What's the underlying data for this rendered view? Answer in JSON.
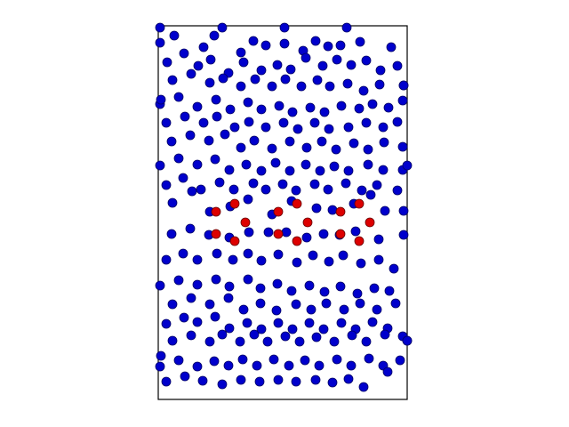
{
  "chart_data": {
    "type": "scatter",
    "title": "",
    "xlabel": "",
    "ylabel": "",
    "grid": false,
    "axes_ticks": false,
    "xlim": [
      0,
      280
    ],
    "ylim": [
      0,
      420
    ],
    "series": [
      {
        "color": "#0000cc",
        "edge_color": "#000066",
        "points": [
          [
            2,
            418
          ],
          [
            72,
            418
          ],
          [
            142,
            418
          ],
          [
            212,
            418
          ],
          [
            2,
            401
          ],
          [
            18,
            409
          ],
          [
            51,
            396
          ],
          [
            63,
            409
          ],
          [
            93,
            390
          ],
          [
            107,
            403
          ],
          [
            121,
            398
          ],
          [
            142,
            400
          ],
          [
            163,
            392
          ],
          [
            177,
            403
          ],
          [
            191,
            397
          ],
          [
            205,
            398
          ],
          [
            227,
            402
          ],
          [
            262,
            396
          ],
          [
            10,
            379
          ],
          [
            29,
            389
          ],
          [
            45,
            375
          ],
          [
            59,
            382
          ],
          [
            79,
            367
          ],
          [
            96,
            379
          ],
          [
            116,
            370
          ],
          [
            134,
            376
          ],
          [
            149,
            371
          ],
          [
            166,
            384
          ],
          [
            185,
            375
          ],
          [
            201,
            382
          ],
          [
            217,
            376
          ],
          [
            234,
            381
          ],
          [
            250,
            370
          ],
          [
            269,
            375
          ],
          [
            16,
            359
          ],
          [
            37,
            366
          ],
          [
            58,
            356
          ],
          [
            73,
            361
          ],
          [
            93,
            352
          ],
          [
            109,
            360
          ],
          [
            128,
            352
          ],
          [
            143,
            360
          ],
          [
            161,
            352
          ],
          [
            179,
            359
          ],
          [
            193,
            352
          ],
          [
            213,
            355
          ],
          [
            231,
            347
          ],
          [
            249,
            354
          ],
          [
            276,
            353
          ],
          [
            2,
            332
          ],
          [
            23,
            340
          ],
          [
            44,
            329
          ],
          [
            65,
            337
          ],
          [
            81,
            326
          ],
          [
            101,
            334
          ],
          [
            116,
            326
          ],
          [
            136,
            330
          ],
          [
            151,
            323
          ],
          [
            171,
            328
          ],
          [
            187,
            323
          ],
          [
            206,
            330
          ],
          [
            226,
            327
          ],
          [
            241,
            332
          ],
          [
            259,
            328
          ],
          [
            275,
            336
          ],
          [
            9,
            311
          ],
          [
            30,
            318
          ],
          [
            51,
            311
          ],
          [
            66,
            318
          ],
          [
            86,
            306
          ],
          [
            102,
            312
          ],
          [
            121,
            306
          ],
          [
            141,
            311
          ],
          [
            157,
            304
          ],
          [
            176,
            311
          ],
          [
            192,
            304
          ],
          [
            214,
            306
          ],
          [
            234,
            311
          ],
          [
            253,
            306
          ],
          [
            269,
            312
          ],
          [
            15,
            290
          ],
          [
            36,
            297
          ],
          [
            57,
            291
          ],
          [
            75,
            298
          ],
          [
            93,
            283
          ],
          [
            108,
            291
          ],
          [
            128,
            282
          ],
          [
            148,
            290
          ],
          [
            167,
            283
          ],
          [
            184,
            290
          ],
          [
            200,
            281
          ],
          [
            220,
            288
          ],
          [
            236,
            281
          ],
          [
            254,
            289
          ],
          [
            275,
            284
          ],
          [
            2,
            263
          ],
          [
            23,
            271
          ],
          [
            44,
            264
          ],
          [
            64,
            270
          ],
          [
            80,
            258
          ],
          [
            99,
            264
          ],
          [
            116,
            257
          ],
          [
            132,
            266
          ],
          [
            148,
            257
          ],
          [
            166,
            264
          ],
          [
            182,
            257
          ],
          [
            198,
            262
          ],
          [
            214,
            257
          ],
          [
            236,
            264
          ],
          [
            253,
            258
          ],
          [
            275,
            258
          ],
          [
            9,
            241
          ],
          [
            28,
            249
          ],
          [
            48,
            236
          ],
          [
            69,
            244
          ],
          [
            85,
            236
          ],
          [
            107,
            243
          ],
          [
            121,
            236
          ],
          [
            140,
            242
          ],
          [
            155,
            235
          ],
          [
            176,
            242
          ],
          [
            191,
            236
          ],
          [
            211,
            243
          ],
          [
            229,
            235
          ],
          [
            246,
            241
          ],
          [
            269,
            235
          ],
          [
            16,
            221
          ],
          [
            38,
            234
          ],
          [
            58,
            211
          ],
          [
            81,
            217
          ],
          [
            101,
            225
          ],
          [
            128,
            208
          ],
          [
            150,
            223
          ],
          [
            178,
            215
          ],
          [
            196,
            213
          ],
          [
            220,
            220
          ],
          [
            239,
            230
          ],
          [
            255,
            212
          ],
          [
            276,
            212
          ],
          [
            15,
            186
          ],
          [
            36,
            192
          ],
          [
            57,
            185
          ],
          [
            80,
            182
          ],
          [
            102,
            188
          ],
          [
            124,
            188
          ],
          [
            144,
            188
          ],
          [
            167,
            182
          ],
          [
            186,
            186
          ],
          [
            204,
            185
          ],
          [
            222,
            189
          ],
          [
            248,
            180
          ],
          [
            276,
            185
          ],
          [
            9,
            157
          ],
          [
            28,
            164
          ],
          [
            44,
            157
          ],
          [
            66,
            164
          ],
          [
            84,
            157
          ],
          [
            101,
            164
          ],
          [
            116,
            156
          ],
          [
            135,
            163
          ],
          [
            156,
            154
          ],
          [
            174,
            162
          ],
          [
            192,
            155
          ],
          [
            208,
            162
          ],
          [
            228,
            153
          ],
          [
            248,
            157
          ],
          [
            265,
            147
          ],
          [
            2,
            128
          ],
          [
            23,
            134
          ],
          [
            44,
            129
          ],
          [
            65,
            135
          ],
          [
            80,
            127
          ],
          [
            101,
            135
          ],
          [
            115,
            125
          ],
          [
            134,
            130
          ],
          [
            150,
            122
          ],
          [
            170,
            128
          ],
          [
            187,
            121
          ],
          [
            205,
            127
          ],
          [
            224,
            119
          ],
          [
            243,
            125
          ],
          [
            260,
            122
          ],
          [
            16,
            107
          ],
          [
            37,
            114
          ],
          [
            58,
            107
          ],
          [
            79,
            114
          ],
          [
            96,
            101
          ],
          [
            115,
            108
          ],
          [
            133,
            100
          ],
          [
            155,
            107
          ],
          [
            172,
            101
          ],
          [
            189,
            108
          ],
          [
            209,
            101
          ],
          [
            227,
            108
          ],
          [
            246,
            101
          ],
          [
            267,
            108
          ],
          [
            9,
            85
          ],
          [
            29,
            92
          ],
          [
            44,
            87
          ],
          [
            64,
            93
          ],
          [
            80,
            80
          ],
          [
            100,
            86
          ],
          [
            116,
            79
          ],
          [
            135,
            86
          ],
          [
            151,
            79
          ],
          [
            170,
            86
          ],
          [
            186,
            79
          ],
          [
            206,
            86
          ],
          [
            222,
            79
          ],
          [
            241,
            87
          ],
          [
            258,
            80
          ],
          [
            16,
            66
          ],
          [
            37,
            72
          ],
          [
            58,
            65
          ],
          [
            72,
            73
          ],
          [
            92,
            65
          ],
          [
            108,
            73
          ],
          [
            123,
            65
          ],
          [
            143,
            71
          ],
          [
            159,
            65
          ],
          [
            178,
            70
          ],
          [
            198,
            65
          ],
          [
            218,
            72
          ],
          [
            234,
            65
          ],
          [
            255,
            73
          ],
          [
            275,
            71
          ],
          [
            2,
            37
          ],
          [
            23,
            44
          ],
          [
            44,
            37
          ],
          [
            63,
            43
          ],
          [
            79,
            38
          ],
          [
            95,
            45
          ],
          [
            111,
            38
          ],
          [
            130,
            45
          ],
          [
            147,
            38
          ],
          [
            165,
            44
          ],
          [
            181,
            38
          ],
          [
            201,
            45
          ],
          [
            217,
            38
          ],
          [
            237,
            46
          ],
          [
            253,
            38
          ],
          [
            272,
            44
          ],
          [
            9,
            20
          ],
          [
            30,
            26
          ],
          [
            50,
            21
          ],
          [
            72,
            17
          ],
          [
            93,
            22
          ],
          [
            114,
            20
          ],
          [
            135,
            22
          ],
          [
            155,
            20
          ],
          [
            177,
            22
          ],
          [
            196,
            19
          ],
          [
            214,
            23
          ],
          [
            231,
            14
          ],
          [
            258,
            31
          ],
          [
            280,
            66
          ],
          [
            3,
            49
          ],
          [
            280,
            263
          ],
          [
            3,
            337
          ],
          [
            276,
            353
          ],
          [
            280,
            66
          ]
        ]
      },
      {
        "color": "#dd0000",
        "edge_color": "#660000",
        "points": [
          [
            65,
            211
          ],
          [
            86,
            220
          ],
          [
            98,
            199
          ],
          [
            65,
            186
          ],
          [
            86,
            178
          ],
          [
            135,
            211
          ],
          [
            156,
            220
          ],
          [
            168,
            199
          ],
          [
            135,
            186
          ],
          [
            156,
            178
          ],
          [
            205,
            211
          ],
          [
            226,
            220
          ],
          [
            238,
            199
          ],
          [
            205,
            186
          ],
          [
            226,
            178
          ]
        ]
      }
    ]
  }
}
